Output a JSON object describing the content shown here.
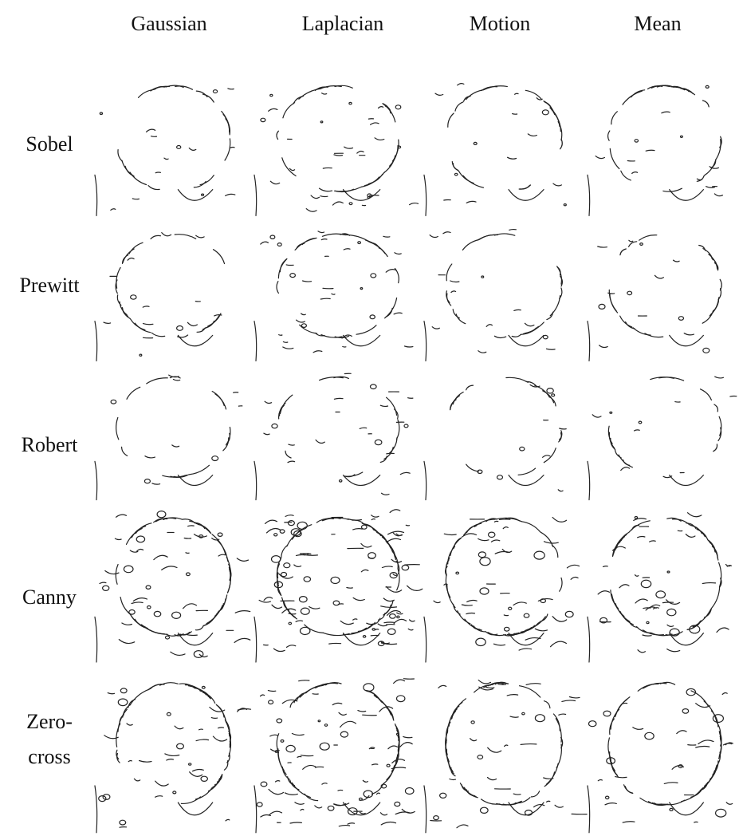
{
  "figure": {
    "column_headers": [
      "Gaussian",
      "Laplacian",
      "Motion",
      "Mean"
    ],
    "row_labels": [
      [
        "Sobel"
      ],
      [
        "Prewitt"
      ],
      [
        "Robert"
      ],
      [
        "Canny"
      ],
      [
        "Zero-",
        "cross"
      ]
    ]
  }
}
